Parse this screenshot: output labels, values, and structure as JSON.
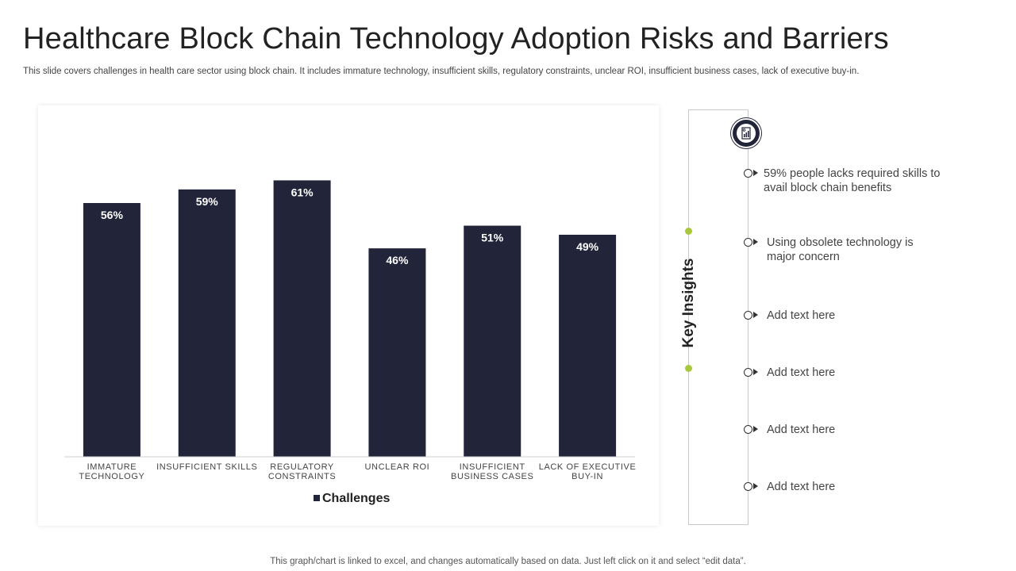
{
  "title": "Healthcare Block Chain Technology Adoption Risks and Barriers",
  "subtitle": "This slide covers challenges in health care sector using block chain. It includes immature technology, insufficient skills, regulatory constraints, unclear ROI, insufficient business cases, lack of executive  buy-in.",
  "chart_data": {
    "type": "bar",
    "title": "",
    "xlabel": "",
    "ylabel": "",
    "ylim": [
      0,
      70
    ],
    "grid": false,
    "legend_position": "bottom",
    "colors": {
      "bar": "#22243a",
      "label": "#ffffff"
    },
    "categories": [
      [
        "IMMATURE",
        "TECHNOLOGY"
      ],
      [
        "INSUFFICIENT SKILLS"
      ],
      [
        "REGULATORY",
        "CONSTRAINTS"
      ],
      [
        "UNCLEAR ROI"
      ],
      [
        "INSUFFICIENT",
        "BUSINESS CASES"
      ],
      [
        "LACK OF EXECUTIVE",
        "BUY-IN"
      ]
    ],
    "series": [
      {
        "name": "Challenges",
        "values": [
          56,
          59,
          61,
          46,
          51,
          49
        ],
        "labels": [
          "56%",
          "59%",
          "61%",
          "46%",
          "51%",
          "49%"
        ]
      }
    ]
  },
  "insights": {
    "heading": "Key Insights",
    "icon": "report-chart-icon",
    "accent_color": "#a8c83a",
    "items": [
      "59% people lacks required skills to avail block chain benefits",
      "Using obsolete technology is major concern",
      "Add text here",
      "Add text here",
      "Add text here",
      "Add text here"
    ]
  },
  "footer": "This graph/chart is linked to excel,  and changes automatically based on data. Just left click on it and select “edit data”."
}
